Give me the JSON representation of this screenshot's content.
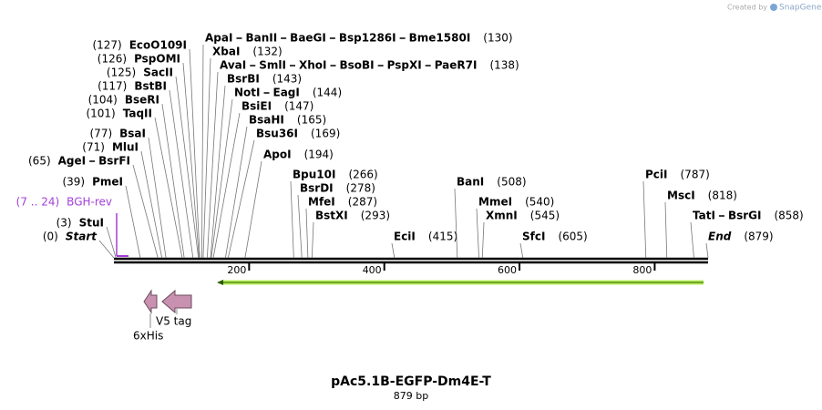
{
  "credit": {
    "prefix": "Created by",
    "brand": "SnapGene"
  },
  "title": "pAc5.1B-EGFP-Dm4E-T",
  "length": "879 bp",
  "ruler": {
    "ticks": [
      200,
      400,
      600,
      800
    ]
  },
  "left_labels": [
    {
      "names": [
        "EcoO109I"
      ],
      "pos": {
        "value": 127,
        "label": "(127)"
      }
    },
    {
      "names": [
        "PspOMI"
      ],
      "pos": {
        "value": 126,
        "label": "(126)"
      }
    },
    {
      "names": [
        "SacII"
      ],
      "pos": {
        "value": 125,
        "label": "(125)"
      }
    },
    {
      "names": [
        "BstBI"
      ],
      "pos": {
        "value": 117,
        "label": "(117)"
      }
    },
    {
      "names": [
        "BseRI"
      ],
      "pos": {
        "value": 104,
        "label": "(104)"
      }
    },
    {
      "names": [
        "TaqII"
      ],
      "pos": {
        "value": 101,
        "label": "(101)"
      }
    },
    {
      "names": [
        "BsaI"
      ],
      "pos": {
        "value": 77,
        "label": "(77)"
      }
    },
    {
      "names": [
        "MluI"
      ],
      "pos": {
        "value": 71,
        "label": "(71)"
      }
    },
    {
      "names": [
        "AgeI",
        "BsrFI"
      ],
      "pos": {
        "value": 65,
        "label": "(65)"
      }
    },
    {
      "names": [
        "PmeI"
      ],
      "pos": {
        "value": 39,
        "label": "(39)"
      }
    },
    {
      "names": [
        "BGH-rev"
      ],
      "pos": "(7 .. 24)",
      "color": "#a33fd8"
    },
    {
      "names": [
        "StuI"
      ],
      "pos": {
        "value": 3,
        "label": "(3)"
      }
    },
    {
      "names": [
        "Start"
      ],
      "pos": {
        "value": 0,
        "label": "(0)"
      },
      "italic": true
    }
  ],
  "right_labels": [
    {
      "names": [
        "ApaI",
        "BanII",
        "BaeGI",
        "Bsp1286I",
        "Bme1580I"
      ],
      "pos": {
        "value": 130,
        "label": "(130)"
      }
    },
    {
      "names": [
        "XbaI"
      ],
      "pos": {
        "value": 132,
        "label": "(132)"
      }
    },
    {
      "names": [
        "AvaI",
        "SmlI",
        "XhoI",
        "BsoBI",
        "PspXI",
        "PaeR7I"
      ],
      "pos": {
        "value": 138,
        "label": "(138)"
      }
    },
    {
      "names": [
        "BsrBI"
      ],
      "pos": {
        "value": 143,
        "label": "(143)"
      }
    },
    {
      "names": [
        "NotI",
        "EagI"
      ],
      "pos": {
        "value": 144,
        "label": "(144)"
      }
    },
    {
      "names": [
        "BsiEI"
      ],
      "pos": {
        "value": 147,
        "label": "(147)"
      }
    },
    {
      "names": [
        "BsaHI"
      ],
      "pos": {
        "value": 165,
        "label": "(165)"
      }
    },
    {
      "names": [
        "Bsu36I"
      ],
      "pos": {
        "value": 169,
        "label": "(169)"
      }
    },
    {
      "names": [
        "ApoI"
      ],
      "pos": {
        "value": 194,
        "label": "(194)"
      }
    },
    {
      "names": [
        "Bpu10I"
      ],
      "pos": {
        "value": 266,
        "label": "(266)"
      }
    },
    {
      "names": [
        "BsrDI"
      ],
      "pos": {
        "value": 278,
        "label": "(278)"
      }
    },
    {
      "names": [
        "MfeI"
      ],
      "pos": {
        "value": 287,
        "label": "(287)"
      }
    },
    {
      "names": [
        "BstXI"
      ],
      "pos": {
        "value": 293,
        "label": "(293)"
      }
    },
    {
      "names": [
        "EciI"
      ],
      "pos": {
        "value": 415,
        "label": "(415)"
      }
    },
    {
      "names": [
        "BanI"
      ],
      "pos": {
        "value": 508,
        "label": "(508)"
      }
    },
    {
      "names": [
        "MmeI"
      ],
      "pos": {
        "value": 540,
        "label": "(540)"
      }
    },
    {
      "names": [
        "XmnI"
      ],
      "pos": {
        "value": 545,
        "label": "(545)"
      }
    },
    {
      "names": [
        "SfcI"
      ],
      "pos": {
        "value": 605,
        "label": "(605)"
      }
    },
    {
      "names": [
        "PciI"
      ],
      "pos": {
        "value": 787,
        "label": "(787)"
      }
    },
    {
      "names": [
        "MscI"
      ],
      "pos": {
        "value": 818,
        "label": "(818)"
      }
    },
    {
      "names": [
        "TatI",
        "BsrGI"
      ],
      "pos": {
        "value": 858,
        "label": "(858)"
      }
    },
    {
      "names": [
        "End"
      ],
      "pos": {
        "value": 879,
        "label": "(879)"
      },
      "italic": true
    }
  ],
  "features": [
    {
      "label": "V5 tag"
    },
    {
      "label": "6xHis"
    }
  ]
}
